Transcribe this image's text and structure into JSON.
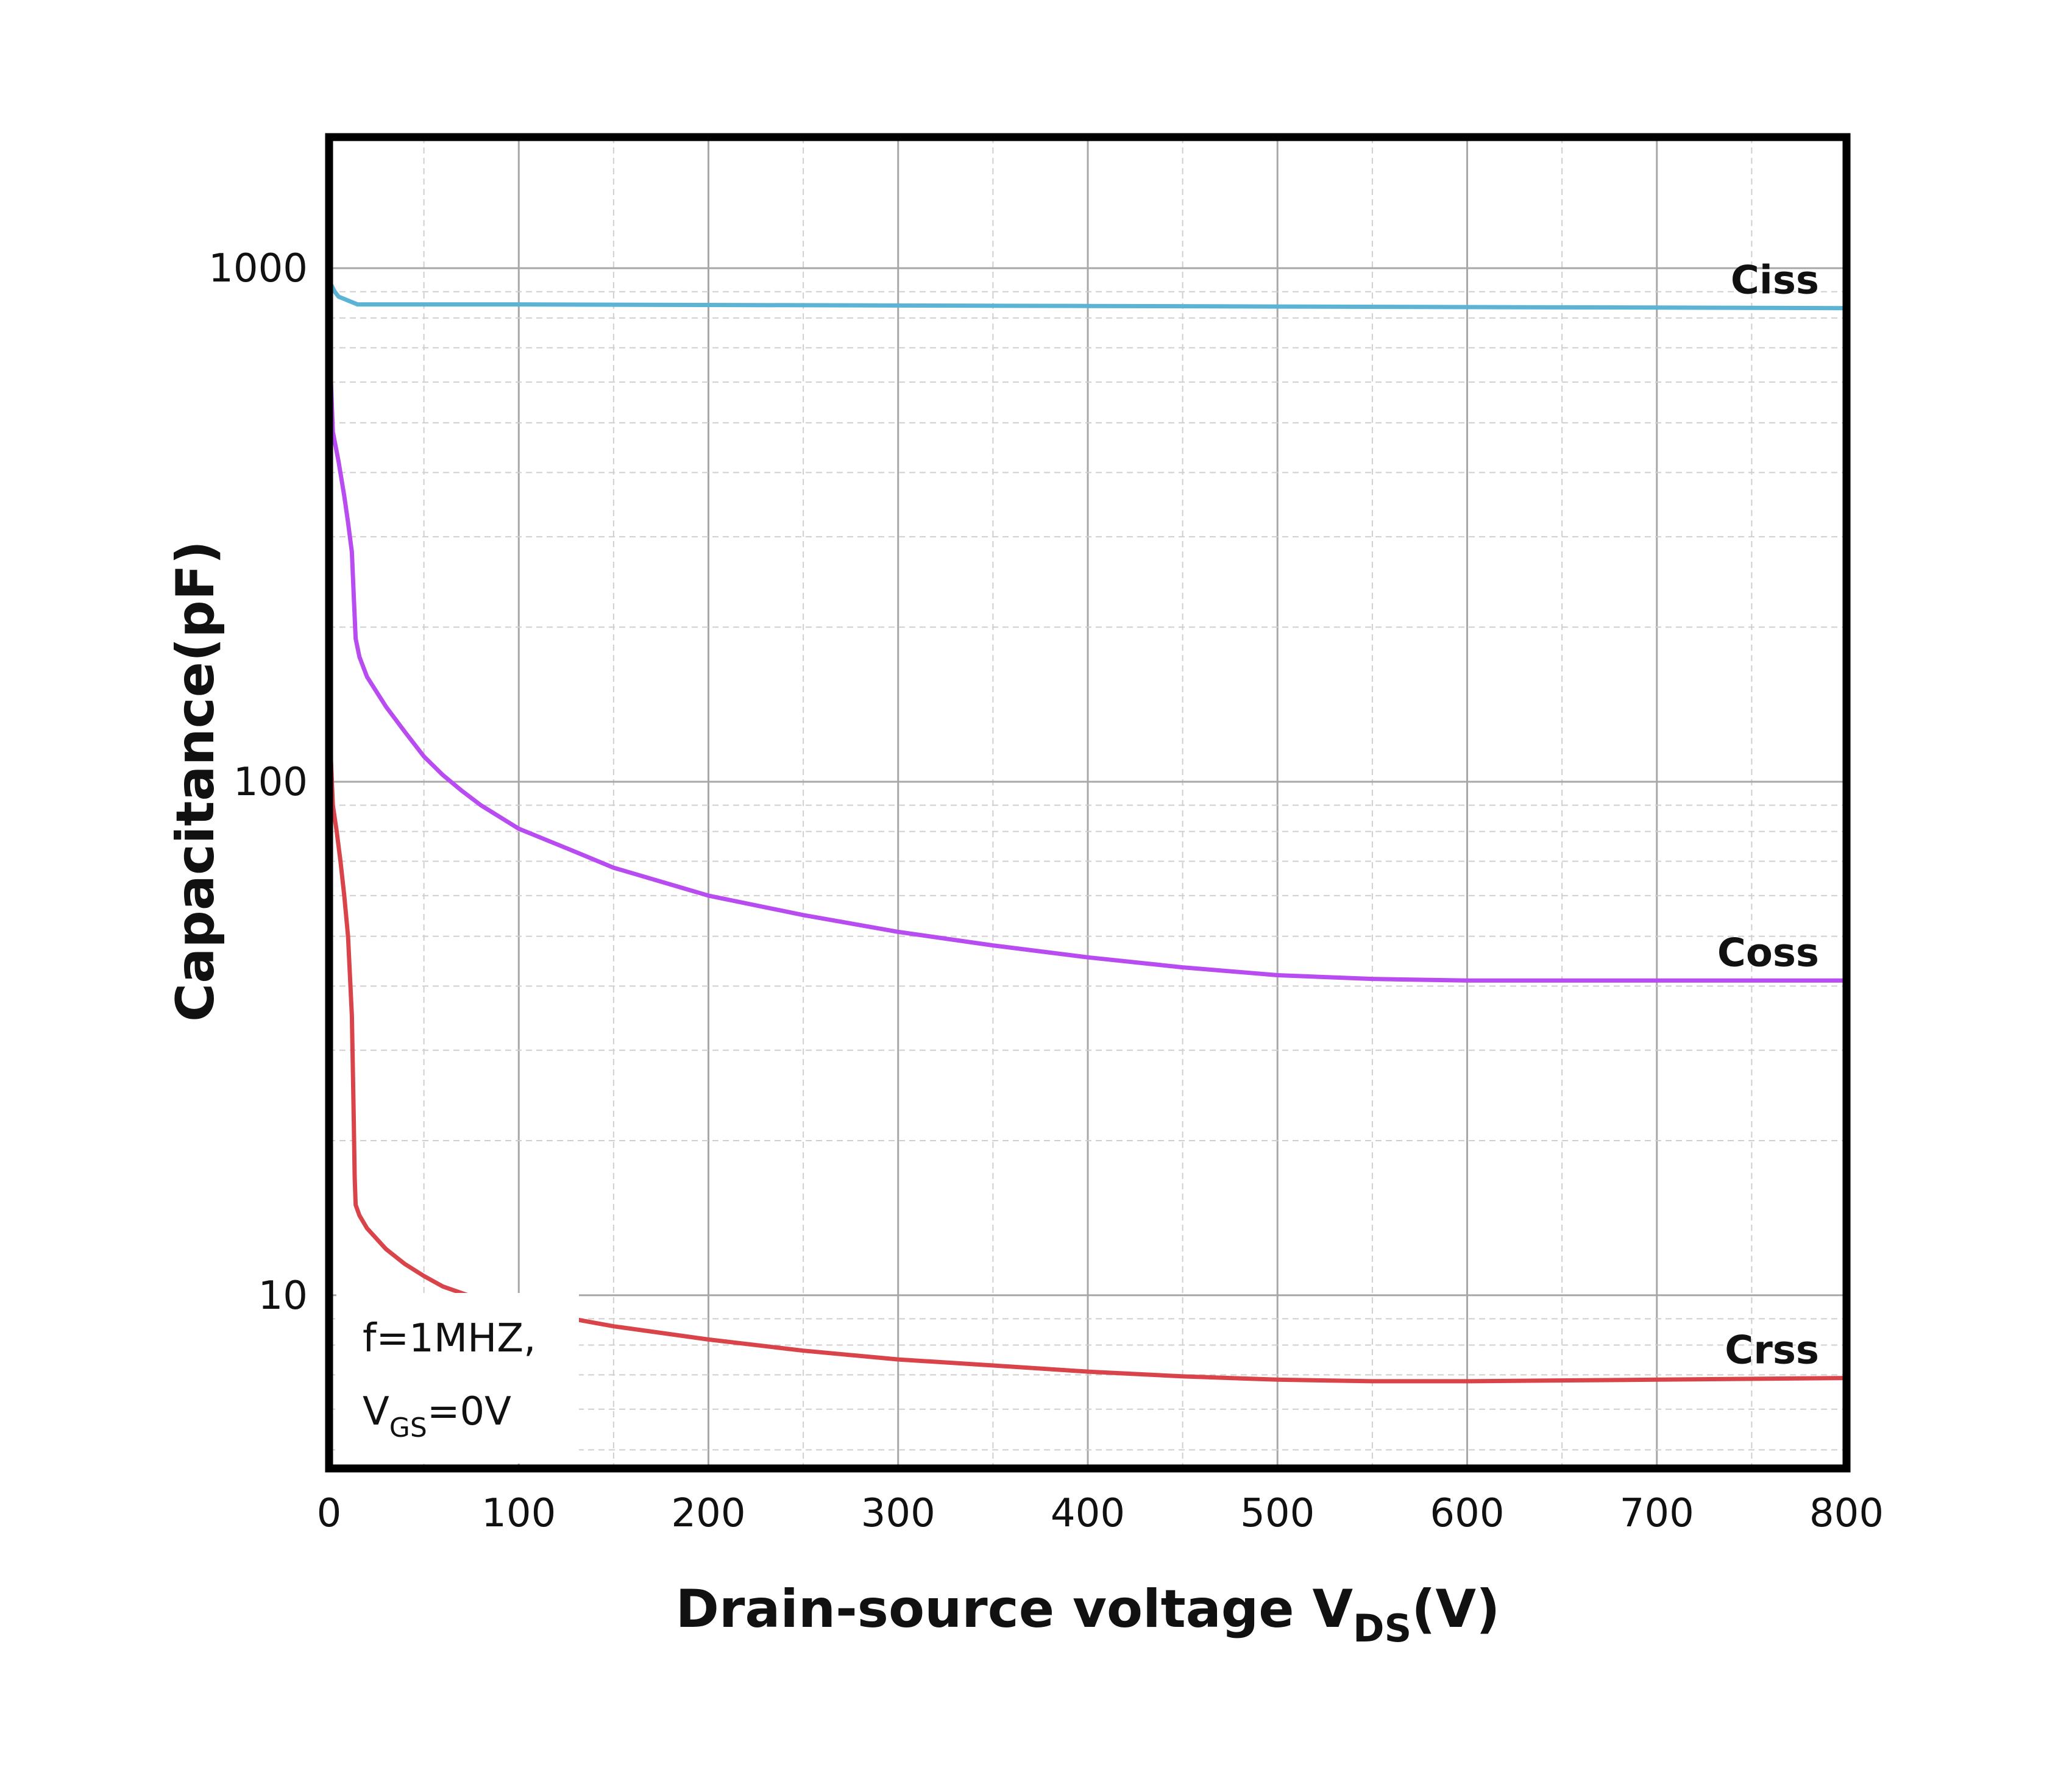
{
  "chart_data": {
    "type": "line",
    "title": "",
    "xlabel": {
      "main": "Drain-source voltage V",
      "sub": "DS",
      "tail": "(V)"
    },
    "ylabel": "Capacitance(pF)",
    "xlim": [
      0,
      800
    ],
    "ylim": [
      4.6,
      1800
    ],
    "yscale": "log",
    "grid": true,
    "x_ticks": [
      "0",
      "100",
      "200",
      "300",
      "400",
      "500",
      "600",
      "700",
      "800"
    ],
    "y_ticks": [
      "10",
      "100",
      "1000"
    ],
    "annotation": {
      "line1": "f=1MHZ,",
      "line2_main": "V",
      "line2_sub": "GS",
      "line2_tail": "=0V"
    },
    "series": [
      {
        "name": "Ciss",
        "color": "#5bb3d6",
        "points": [
          [
            0,
            1100
          ],
          [
            0.5,
            1000
          ],
          [
            1,
            930
          ],
          [
            3,
            900
          ],
          [
            5,
            880
          ],
          [
            10,
            865
          ],
          [
            15,
            850
          ],
          [
            25,
            850
          ],
          [
            100,
            850
          ],
          [
            200,
            848
          ],
          [
            300,
            846
          ],
          [
            400,
            844
          ],
          [
            500,
            842
          ],
          [
            600,
            840
          ],
          [
            700,
            838
          ],
          [
            800,
            836
          ]
        ]
      },
      {
        "name": "Coss",
        "color": "#b84cf0",
        "points": [
          [
            0,
            900
          ],
          [
            1,
            600
          ],
          [
            2,
            480
          ],
          [
            5,
            420
          ],
          [
            8,
            360
          ],
          [
            10,
            320
          ],
          [
            12,
            280
          ],
          [
            13,
            230
          ],
          [
            14,
            190
          ],
          [
            16,
            175
          ],
          [
            20,
            160
          ],
          [
            30,
            140
          ],
          [
            40,
            125
          ],
          [
            50,
            112
          ],
          [
            60,
            103
          ],
          [
            70,
            96
          ],
          [
            80,
            90
          ],
          [
            100,
            81
          ],
          [
            130,
            73
          ],
          [
            150,
            68
          ],
          [
            200,
            60
          ],
          [
            250,
            55
          ],
          [
            300,
            51
          ],
          [
            350,
            48
          ],
          [
            400,
            45.5
          ],
          [
            450,
            43.5
          ],
          [
            500,
            42
          ],
          [
            550,
            41.3
          ],
          [
            600,
            41
          ],
          [
            700,
            41
          ],
          [
            800,
            41
          ]
        ]
      },
      {
        "name": "Crss",
        "color": "#d9444b",
        "points": [
          [
            0,
            350
          ],
          [
            0.5,
            180
          ],
          [
            1,
            110
          ],
          [
            2,
            90
          ],
          [
            4,
            80
          ],
          [
            6,
            70
          ],
          [
            8,
            60
          ],
          [
            10,
            50
          ],
          [
            11,
            42
          ],
          [
            12,
            35
          ],
          [
            12.5,
            28
          ],
          [
            13,
            22
          ],
          [
            13.5,
            17
          ],
          [
            14,
            15
          ],
          [
            16,
            14.3
          ],
          [
            20,
            13.5
          ],
          [
            30,
            12.3
          ],
          [
            40,
            11.5
          ],
          [
            50,
            10.9
          ],
          [
            60,
            10.4
          ],
          [
            80,
            9.8
          ],
          [
            100,
            9.4
          ],
          [
            150,
            8.7
          ],
          [
            200,
            8.2
          ],
          [
            250,
            7.8
          ],
          [
            300,
            7.5
          ],
          [
            350,
            7.3
          ],
          [
            400,
            7.1
          ],
          [
            450,
            6.95
          ],
          [
            500,
            6.85
          ],
          [
            550,
            6.8
          ],
          [
            600,
            6.8
          ],
          [
            700,
            6.85
          ],
          [
            800,
            6.9
          ]
        ]
      }
    ]
  }
}
